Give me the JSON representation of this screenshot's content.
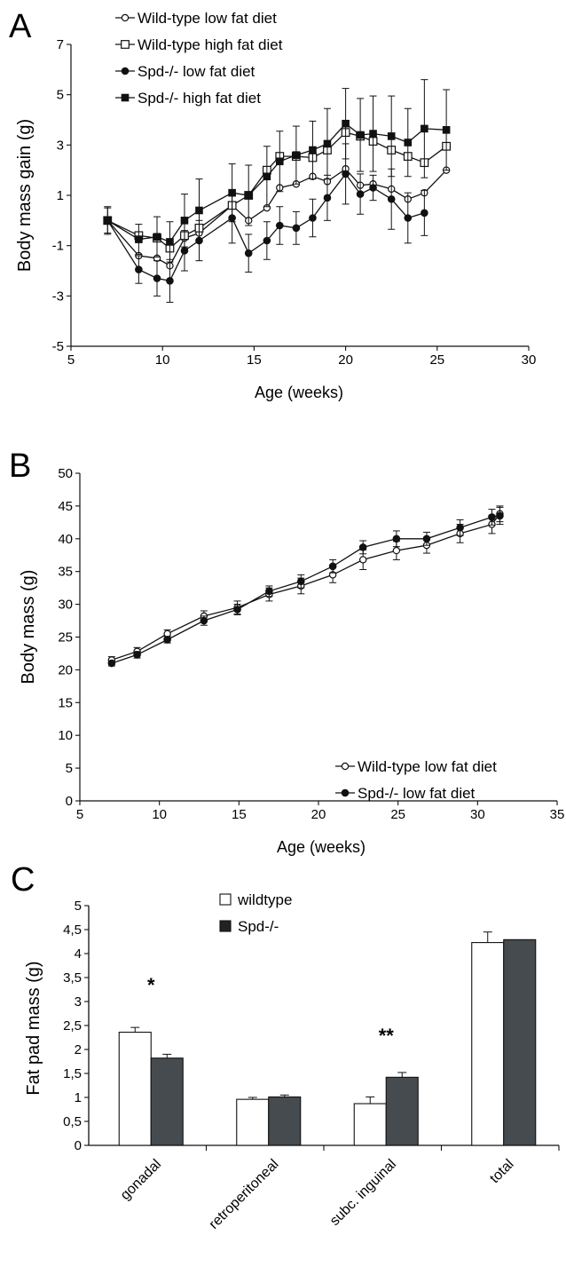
{
  "charts": [
    {
      "letter": "A"
    },
    {
      "letter": "B"
    },
    {
      "letter": "C"
    }
  ],
  "chart_data": [
    {
      "type": "line",
      "panel": "A",
      "xlabel": "Age (weeks)",
      "ylabel": "Body mass gain (g)",
      "xlim": [
        5,
        30
      ],
      "ylim": [
        -5,
        7
      ],
      "xticks": [
        5,
        10,
        15,
        20,
        25,
        30
      ],
      "yticks": [
        -5,
        -3,
        -1,
        1,
        3,
        5,
        7
      ],
      "legend": "top-left",
      "series": [
        {
          "name": "Wild-type low fat diet",
          "marker": "open-circle",
          "x": [
            7,
            8.7,
            9.7,
            10.4,
            11.2,
            12,
            13.8,
            14.7,
            15.7,
            16.4,
            17.3,
            18.2,
            19,
            20,
            20.8,
            21.5,
            22.5,
            23.4,
            24.3,
            25.5
          ],
          "y": [
            0,
            -1.4,
            -1.5,
            -1.8,
            -0.7,
            -0.5,
            0.6,
            0,
            0.5,
            1.3,
            1.45,
            1.75,
            1.55,
            2.05,
            1.4,
            1.45,
            1.25,
            0.85,
            1.1,
            2.0
          ],
          "err": [
            0.5,
            0,
            0,
            0,
            0,
            0,
            0,
            0,
            0,
            0,
            0,
            0,
            0,
            0,
            0,
            0,
            0,
            0,
            0,
            0
          ]
        },
        {
          "name": "Wild-type high fat diet",
          "marker": "open-square",
          "x": [
            7,
            8.7,
            9.7,
            10.4,
            11.2,
            12,
            13.8,
            14.7,
            15.7,
            16.4,
            17.3,
            18.2,
            19,
            20,
            20.8,
            21.5,
            22.5,
            23.4,
            24.3,
            25.5
          ],
          "y": [
            0,
            -0.6,
            -0.7,
            -1.1,
            -0.6,
            -0.3,
            0.6,
            1.0,
            2.0,
            2.55,
            2.55,
            2.5,
            2.8,
            3.5,
            3.35,
            3.15,
            2.8,
            2.55,
            2.3,
            2.95
          ],
          "err": [
            0,
            0,
            0,
            0,
            0,
            0,
            0,
            0,
            0,
            0,
            0,
            0,
            0,
            0,
            0,
            0,
            0,
            0,
            0,
            0
          ]
        },
        {
          "name": "Spd-/- low fat diet",
          "marker": "filled-circle",
          "x": [
            7,
            8.7,
            9.7,
            10.4,
            11.2,
            12,
            13.8,
            14.7,
            15.7,
            16.4,
            17.3,
            18.2,
            19,
            20,
            20.8,
            21.5,
            22.5,
            23.4,
            24.3
          ],
          "y": [
            0,
            -1.95,
            -2.3,
            -2.4,
            -1.2,
            -0.8,
            0.1,
            -1.3,
            -0.8,
            -0.2,
            -0.3,
            0.1,
            0.9,
            1.85,
            1.05,
            1.3,
            0.85,
            0.1,
            0.3
          ],
          "err": [
            0,
            0.55,
            0.7,
            0.85,
            0.8,
            0.8,
            1.0,
            0.75,
            0.75,
            0.75,
            0.65,
            0.75,
            0.9,
            1.2,
            0.8,
            0.5,
            1.2,
            1.0,
            0.9
          ]
        },
        {
          "name": "Spd-/- high fat diet",
          "marker": "filled-square",
          "x": [
            7,
            8.7,
            9.7,
            10.4,
            11.2,
            12,
            13.8,
            14.7,
            15.7,
            16.4,
            17.3,
            18.2,
            19,
            20,
            20.8,
            21.5,
            22.5,
            23.4,
            24.3,
            25.5
          ],
          "y": [
            0,
            -0.75,
            -0.65,
            -0.85,
            0,
            0.4,
            1.1,
            1.0,
            1.75,
            2.35,
            2.6,
            2.8,
            3.05,
            3.85,
            3.4,
            3.45,
            3.35,
            3.1,
            3.65,
            3.6
          ],
          "err": [
            0.55,
            0.6,
            0.8,
            0.8,
            1.05,
            1.25,
            1.15,
            1.2,
            1.2,
            1.2,
            1.15,
            1.15,
            1.4,
            1.4,
            1.45,
            1.5,
            1.6,
            1.35,
            1.95,
            1.6
          ]
        }
      ]
    },
    {
      "type": "line",
      "panel": "B",
      "xlabel": "Age (weeks)",
      "ylabel": "Body mass (g)",
      "xlim": [
        5,
        35
      ],
      "ylim": [
        0,
        50
      ],
      "xticks": [
        5,
        10,
        15,
        20,
        25,
        30,
        35
      ],
      "yticks": [
        0,
        5,
        10,
        15,
        20,
        25,
        30,
        35,
        40,
        45,
        50
      ],
      "legend": "bottom-right",
      "series": [
        {
          "name": "Wild-type low fat diet",
          "marker": "open-circle",
          "x": [
            7,
            8.6,
            10.5,
            12.8,
            14.9,
            16.9,
            18.9,
            20.9,
            22.8,
            24.9,
            26.8,
            28.9,
            30.9,
            31.4
          ],
          "y": [
            21.5,
            22.8,
            25.5,
            28.2,
            29.5,
            31.5,
            32.8,
            34.5,
            36.8,
            38.2,
            39.0,
            40.8,
            42.2,
            43.8
          ],
          "err": [
            0.5,
            0.6,
            0.6,
            0.8,
            1.0,
            1.0,
            1.2,
            1.2,
            1.5,
            1.4,
            1.2,
            1.4,
            1.4,
            1.2
          ]
        },
        {
          "name": "Spd-/- low fat diet",
          "marker": "filled-circle",
          "x": [
            7,
            8.6,
            10.5,
            12.8,
            14.9,
            16.9,
            18.9,
            20.9,
            22.8,
            24.9,
            26.8,
            28.9,
            30.9,
            31.4
          ],
          "y": [
            21.0,
            22.3,
            24.6,
            27.5,
            29.2,
            32.0,
            33.5,
            35.8,
            38.7,
            40.0,
            40.0,
            41.7,
            43.3,
            43.5
          ],
          "err": [
            0.4,
            0.5,
            0.5,
            0.7,
            0.8,
            0.8,
            1.0,
            1.0,
            1.0,
            1.2,
            1.0,
            1.2,
            1.2,
            1.3
          ]
        }
      ]
    },
    {
      "type": "bar",
      "panel": "C",
      "xlabel": "",
      "ylabel": "Fat pad mass (g)",
      "ylim": [
        0,
        5
      ],
      "yticks": [
        "0",
        "0,5",
        "1",
        "1,5",
        "2",
        "2,5",
        "3",
        "3,5",
        "4",
        "4,5",
        "5"
      ],
      "legend": "top-center",
      "categories": [
        "gonadal",
        "retroperitoneal",
        "subc. inguinal",
        "total"
      ],
      "annotations": [
        "*",
        "",
        "**",
        ""
      ],
      "series": [
        {
          "name": "wildtype",
          "color": "#ffffff",
          "values": [
            2.36,
            0.96,
            0.87,
            4.23
          ],
          "err": [
            0.1,
            0.04,
            0.14,
            0.22
          ]
        },
        {
          "name": "Spd-/-",
          "color": "#454b4e",
          "values": [
            1.82,
            1.01,
            1.42,
            4.29
          ],
          "err": [
            0.08,
            0.04,
            0.1,
            0
          ]
        }
      ]
    }
  ]
}
